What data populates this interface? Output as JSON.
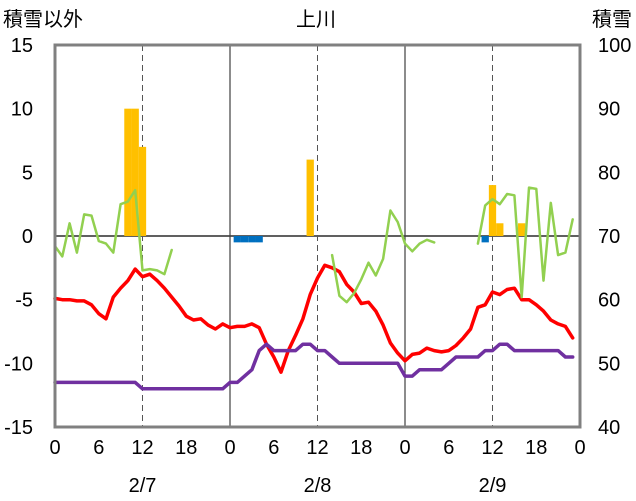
{
  "chart_data": {
    "type": "line",
    "title": "上川",
    "ylabel_left": "積雪以外",
    "ylabel_right": "積雪",
    "ylim_left": [
      -15,
      15
    ],
    "ylim_right": [
      40,
      100
    ],
    "yticks_left": [
      "15",
      "10",
      "5",
      "0",
      "-5",
      "-10",
      "-15"
    ],
    "yticks_right": [
      "100",
      "90",
      "80",
      "70",
      "60",
      "50",
      "40"
    ],
    "xlim_hours": [
      0,
      72
    ],
    "xtick_labels": [
      "0",
      "6",
      "12",
      "18",
      "0",
      "6",
      "12",
      "18",
      "0",
      "6",
      "12",
      "18",
      "0"
    ],
    "day_labels": [
      "2/7",
      "2/8",
      "2/9"
    ],
    "grid": "dashed vertical at 12h, solid vertical at day boundaries, horizontal zero line",
    "colors": {
      "snowfall_positive": "#FFC000",
      "snowfall_negative": "#0070C0",
      "temperature": "#FF0000",
      "wind": "#92D050",
      "snow_depth": "#7030A0"
    },
    "bars": [
      {
        "x": 10,
        "value": 10
      },
      {
        "x": 11,
        "value": 10
      },
      {
        "x": 12,
        "value": 7
      },
      {
        "x": 25,
        "value": -0.5
      },
      {
        "x": 26,
        "value": -0.5
      },
      {
        "x": 27,
        "value": -0.5
      },
      {
        "x": 28,
        "value": -0.5
      },
      {
        "x": 35,
        "value": 6
      },
      {
        "x": 59,
        "value": -0.5
      },
      {
        "x": 60,
        "value": 4
      },
      {
        "x": 61,
        "value": 1
      },
      {
        "x": 64,
        "value": 1
      }
    ],
    "series": [
      {
        "axis": "left",
        "color": "#FF0000",
        "points": [
          [
            0,
            -4.9
          ],
          [
            1,
            -5
          ],
          [
            2,
            -5
          ],
          [
            3,
            -5.1
          ],
          [
            4,
            -5.1
          ],
          [
            5,
            -5.4
          ],
          [
            6,
            -6.1
          ],
          [
            7,
            -6.5
          ],
          [
            8,
            -4.8
          ],
          [
            9,
            -4.1
          ],
          [
            10,
            -3.5
          ],
          [
            11,
            -2.6
          ],
          [
            12,
            -3.2
          ],
          [
            13,
            -3
          ],
          [
            14,
            -3.5
          ],
          [
            15,
            -4.1
          ],
          [
            16,
            -4.8
          ],
          [
            17,
            -5.5
          ],
          [
            18,
            -6.3
          ],
          [
            19,
            -6.6
          ],
          [
            20,
            -6.5
          ],
          [
            21,
            -7
          ],
          [
            22,
            -7.3
          ],
          [
            23,
            -6.9
          ],
          [
            24,
            -7.2
          ],
          [
            25,
            -7.1
          ],
          [
            26,
            -7.1
          ],
          [
            27,
            -6.9
          ],
          [
            28,
            -7.2
          ],
          [
            29,
            -8.5
          ],
          [
            30,
            -9.5
          ],
          [
            31,
            -10.7
          ],
          [
            32,
            -9
          ],
          [
            33,
            -7.8
          ],
          [
            34,
            -6.5
          ],
          [
            35,
            -4.6
          ],
          [
            36,
            -3.3
          ],
          [
            37,
            -2.3
          ],
          [
            38,
            -2.5
          ],
          [
            39,
            -2.8
          ],
          [
            40,
            -3.8
          ],
          [
            41,
            -4.4
          ],
          [
            42,
            -5.3
          ],
          [
            43,
            -5.2
          ],
          [
            44,
            -5.9
          ],
          [
            45,
            -7
          ],
          [
            46,
            -8.4
          ],
          [
            47,
            -9.2
          ],
          [
            48,
            -9.8
          ],
          [
            49,
            -9.3
          ],
          [
            50,
            -9.2
          ],
          [
            51,
            -8.8
          ],
          [
            52,
            -9
          ],
          [
            53,
            -9.1
          ],
          [
            54,
            -9
          ],
          [
            55,
            -8.6
          ],
          [
            56,
            -8
          ],
          [
            57,
            -7.3
          ],
          [
            58,
            -5.6
          ],
          [
            59,
            -5.4
          ],
          [
            60,
            -4.4
          ],
          [
            61,
            -4.6
          ],
          [
            62,
            -4.2
          ],
          [
            63,
            -4.1
          ],
          [
            64,
            -5
          ],
          [
            65,
            -5
          ],
          [
            66,
            -5.4
          ],
          [
            67,
            -5.9
          ],
          [
            68,
            -6.6
          ],
          [
            69,
            -6.9
          ],
          [
            70,
            -7.1
          ],
          [
            71,
            -8
          ]
        ]
      },
      {
        "axis": "left",
        "color": "#92D050",
        "points": [
          [
            0,
            -0.8
          ],
          [
            1,
            -1.6
          ],
          [
            2,
            1
          ],
          [
            3,
            -1.3
          ],
          [
            4,
            1.7
          ],
          [
            5,
            1.6
          ],
          [
            6,
            -0.4
          ],
          [
            7,
            -0.6
          ],
          [
            8,
            -1.3
          ],
          [
            9,
            2.5
          ],
          [
            10,
            2.7
          ],
          [
            11,
            3.6
          ],
          [
            12,
            -2.7
          ],
          [
            13,
            -2.6
          ],
          [
            14,
            -2.7
          ],
          [
            15,
            -3
          ],
          [
            16,
            -1.1
          ],
          null,
          [
            38,
            -1.5
          ],
          [
            39,
            -4.7
          ],
          [
            40,
            -5.2
          ],
          [
            41,
            -4.5
          ],
          [
            42,
            -3.4
          ],
          [
            43,
            -2.1
          ],
          [
            44,
            -3.1
          ],
          [
            45,
            -1.8
          ],
          [
            46,
            2
          ],
          [
            47,
            1.1
          ],
          [
            48,
            -0.6
          ],
          [
            49,
            -1.2
          ],
          [
            50,
            -0.6
          ],
          [
            51,
            -0.3
          ],
          [
            52,
            -0.5
          ],
          null,
          [
            58,
            -0.6
          ],
          [
            59,
            2.4
          ],
          [
            60,
            2.9
          ],
          [
            61,
            2.5
          ],
          [
            62,
            3.3
          ],
          [
            63,
            3.2
          ],
          [
            64,
            -4.8
          ],
          [
            65,
            3.8
          ],
          [
            66,
            3.7
          ],
          [
            67,
            -3.5
          ],
          [
            68,
            2.6
          ],
          [
            69,
            -1.5
          ],
          [
            70,
            -1.3
          ],
          [
            71,
            1.3
          ]
        ]
      },
      {
        "axis": "right",
        "color": "#7030A0",
        "points": [
          [
            0,
            47
          ],
          [
            1,
            47
          ],
          [
            11,
            47
          ],
          [
            12,
            46
          ],
          [
            23,
            46
          ],
          [
            24,
            47
          ],
          [
            25,
            47
          ],
          [
            26,
            48
          ],
          [
            27,
            49
          ],
          [
            28,
            52
          ],
          [
            29,
            53
          ],
          [
            30,
            52
          ],
          [
            31,
            52
          ],
          [
            33,
            52
          ],
          [
            34,
            53
          ],
          [
            35,
            53
          ],
          [
            36,
            52
          ],
          [
            37,
            52
          ],
          [
            38,
            51
          ],
          [
            39,
            50
          ],
          [
            47,
            50
          ],
          [
            48,
            48
          ],
          [
            49,
            48
          ],
          [
            50,
            49
          ],
          [
            53,
            49
          ],
          [
            54,
            50
          ],
          [
            55,
            51
          ],
          [
            58,
            51
          ],
          [
            59,
            52
          ],
          [
            60,
            52
          ],
          [
            61,
            53
          ],
          [
            62,
            53
          ],
          [
            63,
            52
          ],
          [
            69,
            52
          ],
          [
            70,
            51
          ],
          [
            71,
            51
          ]
        ]
      }
    ]
  }
}
